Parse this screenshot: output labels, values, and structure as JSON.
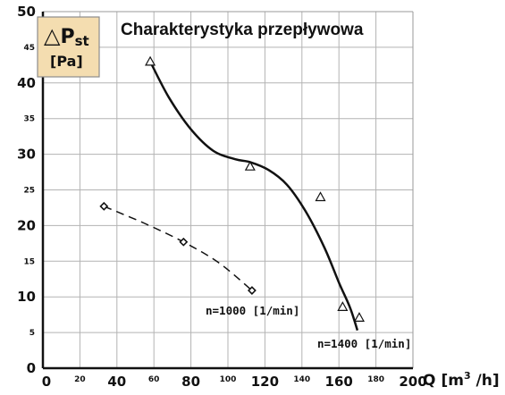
{
  "chart_data": {
    "type": "line",
    "title": "Charakterystyka przepływowa",
    "ylabel": {
      "symbol": "△",
      "text": "P",
      "subscript": "st",
      "unit": "[Pa]"
    },
    "xlabel": {
      "text": "Q",
      "unit_open": "[m",
      "unit_sup": "3",
      "unit_close": " /h]"
    },
    "xlim": [
      0,
      200
    ],
    "ylim": [
      0,
      50
    ],
    "x_ticks_major": [
      "0",
      "40",
      "80",
      "120",
      "160",
      "200"
    ],
    "x_ticks_minor": [
      "20",
      "60",
      "100",
      "140",
      "180"
    ],
    "y_ticks_major": [
      "0",
      "10",
      "20",
      "30",
      "40",
      "50"
    ],
    "y_ticks_minor": [
      "5",
      "15",
      "25",
      "35",
      "45"
    ],
    "grid": true,
    "series": [
      {
        "name": "n=1400 [1/min]",
        "line_style": "solid",
        "marker": "triangle",
        "points": [
          [
            58,
            43
          ],
          [
            112,
            28.3
          ],
          [
            150,
            24
          ],
          [
            162,
            8.6
          ],
          [
            171,
            7.1
          ]
        ],
        "curve": [
          [
            58,
            43
          ],
          [
            68,
            38
          ],
          [
            80,
            33.5
          ],
          [
            92,
            30.5
          ],
          [
            104,
            29.3
          ],
          [
            112,
            28.9
          ],
          [
            122,
            27.8
          ],
          [
            132,
            25.7
          ],
          [
            142,
            22
          ],
          [
            152,
            17
          ],
          [
            160,
            12
          ],
          [
            166,
            8.5
          ],
          [
            170,
            5.3
          ]
        ]
      },
      {
        "name": "n=1000 [1/min]",
        "line_style": "dashed",
        "marker": "diamond",
        "points": [
          [
            33,
            22.7
          ],
          [
            76,
            17.7
          ],
          [
            113,
            10.9
          ]
        ],
        "curve": [
          [
            33,
            22.7
          ],
          [
            55,
            20.3
          ],
          [
            76,
            17.7
          ],
          [
            95,
            14.8
          ],
          [
            113,
            10.9
          ]
        ]
      }
    ]
  }
}
